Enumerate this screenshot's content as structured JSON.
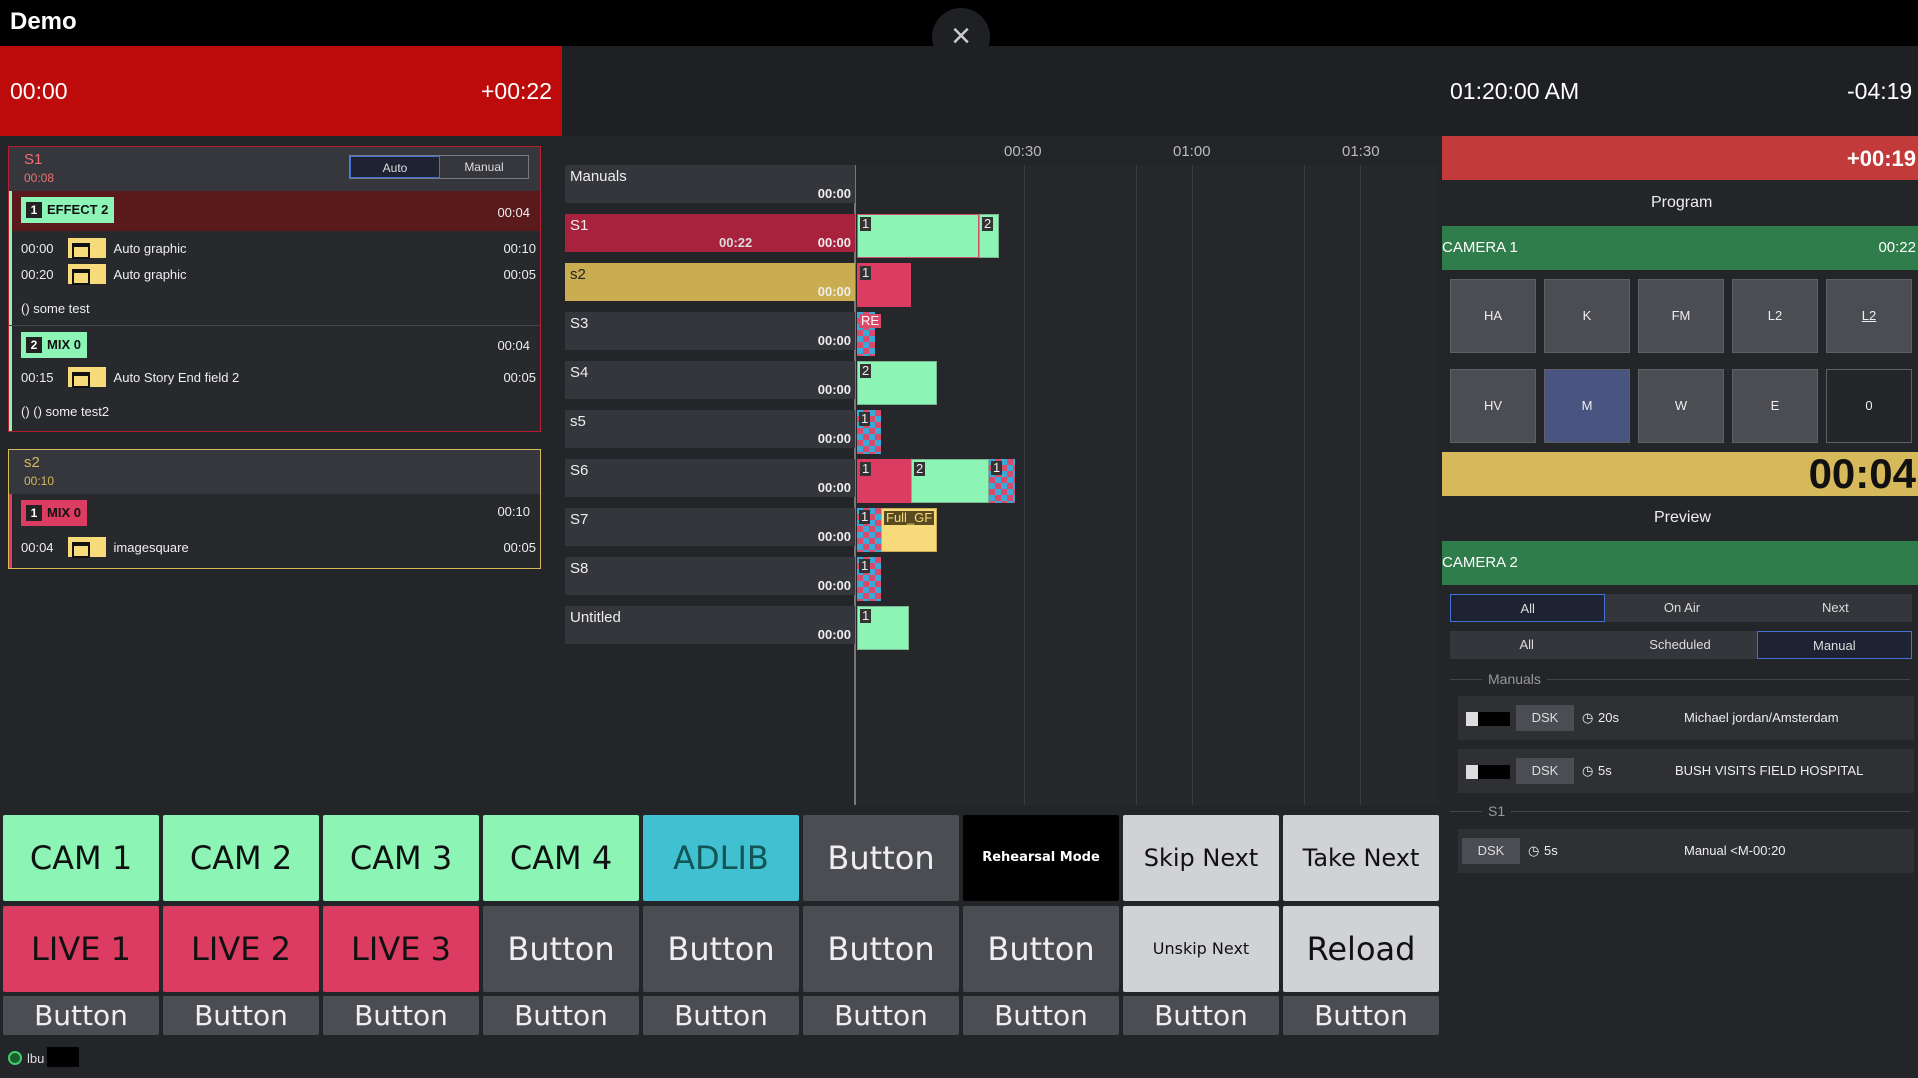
{
  "app": {
    "title": "Demo"
  },
  "header": {
    "elapsed": "00:00",
    "over": "+00:22",
    "clock": "01:20:00 AM",
    "remaining": "-04:19"
  },
  "rundown": {
    "s1": {
      "name": "S1",
      "duration": "00:08",
      "mode_auto": "Auto",
      "mode_manual": "Manual",
      "item1": {
        "num": "1",
        "label": "EFFECT 2",
        "dur": "00:04",
        "rows": [
          {
            "in": "00:00",
            "name": "Auto graphic",
            "out": "00:10"
          },
          {
            "in": "00:20",
            "name": "Auto graphic",
            "out": "00:05"
          }
        ],
        "note": "() some test"
      },
      "item2": {
        "num": "2",
        "label": "MIX 0",
        "dur": "00:04",
        "rows": [
          {
            "in": "00:15",
            "name": "Auto Story End field 2",
            "out": "00:05"
          }
        ],
        "note": "() () some test2"
      }
    },
    "s2": {
      "name": "s2",
      "duration": "00:10",
      "item1": {
        "num": "1",
        "label": "MIX 0",
        "dur": "00:10",
        "rows": [
          {
            "in": "00:04",
            "name": "imagesquare",
            "out": "00:05"
          }
        ]
      }
    }
  },
  "timeline": {
    "ticks": [
      "00:30",
      "01:00",
      "01:30"
    ],
    "lanes": [
      {
        "name": "Manuals",
        "time": "00:00"
      },
      {
        "name": "S1",
        "time": "00:00",
        "sub": "00:22"
      },
      {
        "name": "s2",
        "time": "00:00"
      },
      {
        "name": "S3",
        "time": "00:00"
      },
      {
        "name": "S4",
        "time": "00:00"
      },
      {
        "name": "s5",
        "time": "00:00"
      },
      {
        "name": "S6",
        "time": "00:00"
      },
      {
        "name": "S7",
        "time": "00:00"
      },
      {
        "name": "S8",
        "time": "00:00"
      },
      {
        "name": "Untitled",
        "time": "00:00"
      }
    ],
    "labels": {
      "re": "RE",
      "full": "Full_GF",
      "n1": "1",
      "n2": "2"
    }
  },
  "right": {
    "over": "+00:19",
    "program_label": "Program",
    "program_source": "CAMERA 1",
    "program_time": "00:22",
    "grid1": [
      "HA",
      "K",
      "FM",
      "L2",
      "L2"
    ],
    "grid2": [
      "HV",
      "M",
      "W",
      "E",
      "0"
    ],
    "countdown": "00:04",
    "preview_label": "Preview",
    "preview_source": "CAMERA 2",
    "tabs1": [
      "All",
      "On Air",
      "Next"
    ],
    "tabs2": [
      "All",
      "Scheduled",
      "Manual"
    ],
    "section_manuals": "Manuals",
    "section_s1": "S1",
    "items": [
      {
        "dsk": "DSK",
        "time": "20s",
        "name": "Michael jordan/Amsterdam"
      },
      {
        "dsk": "DSK",
        "time": "5s",
        "name": "BUSH VISITS FIELD HOSPITAL"
      },
      {
        "dsk": "DSK",
        "time": "5s",
        "name": "Manual <M-00:20"
      }
    ]
  },
  "buttons": {
    "row1": [
      "CAM 1",
      "CAM 2",
      "CAM 3",
      "CAM 4",
      "ADLIB",
      "Button",
      "Rehearsal Mode",
      "Skip Next",
      "Take Next"
    ],
    "row2": [
      "LIVE 1",
      "LIVE 2",
      "LIVE 3",
      "Button",
      "Button",
      "Button",
      "Button",
      "Unskip Next",
      "Reload"
    ],
    "row3": [
      "Button",
      "Button",
      "Button",
      "Button",
      "Button",
      "Button",
      "Button",
      "Button",
      "Button"
    ]
  },
  "status": {
    "user": "lbu"
  },
  "colors": {
    "accent_red": "#bd0a0a",
    "green": "#8cf5b5",
    "pink": "#dc3b62",
    "yellow": "#d6b95a"
  }
}
